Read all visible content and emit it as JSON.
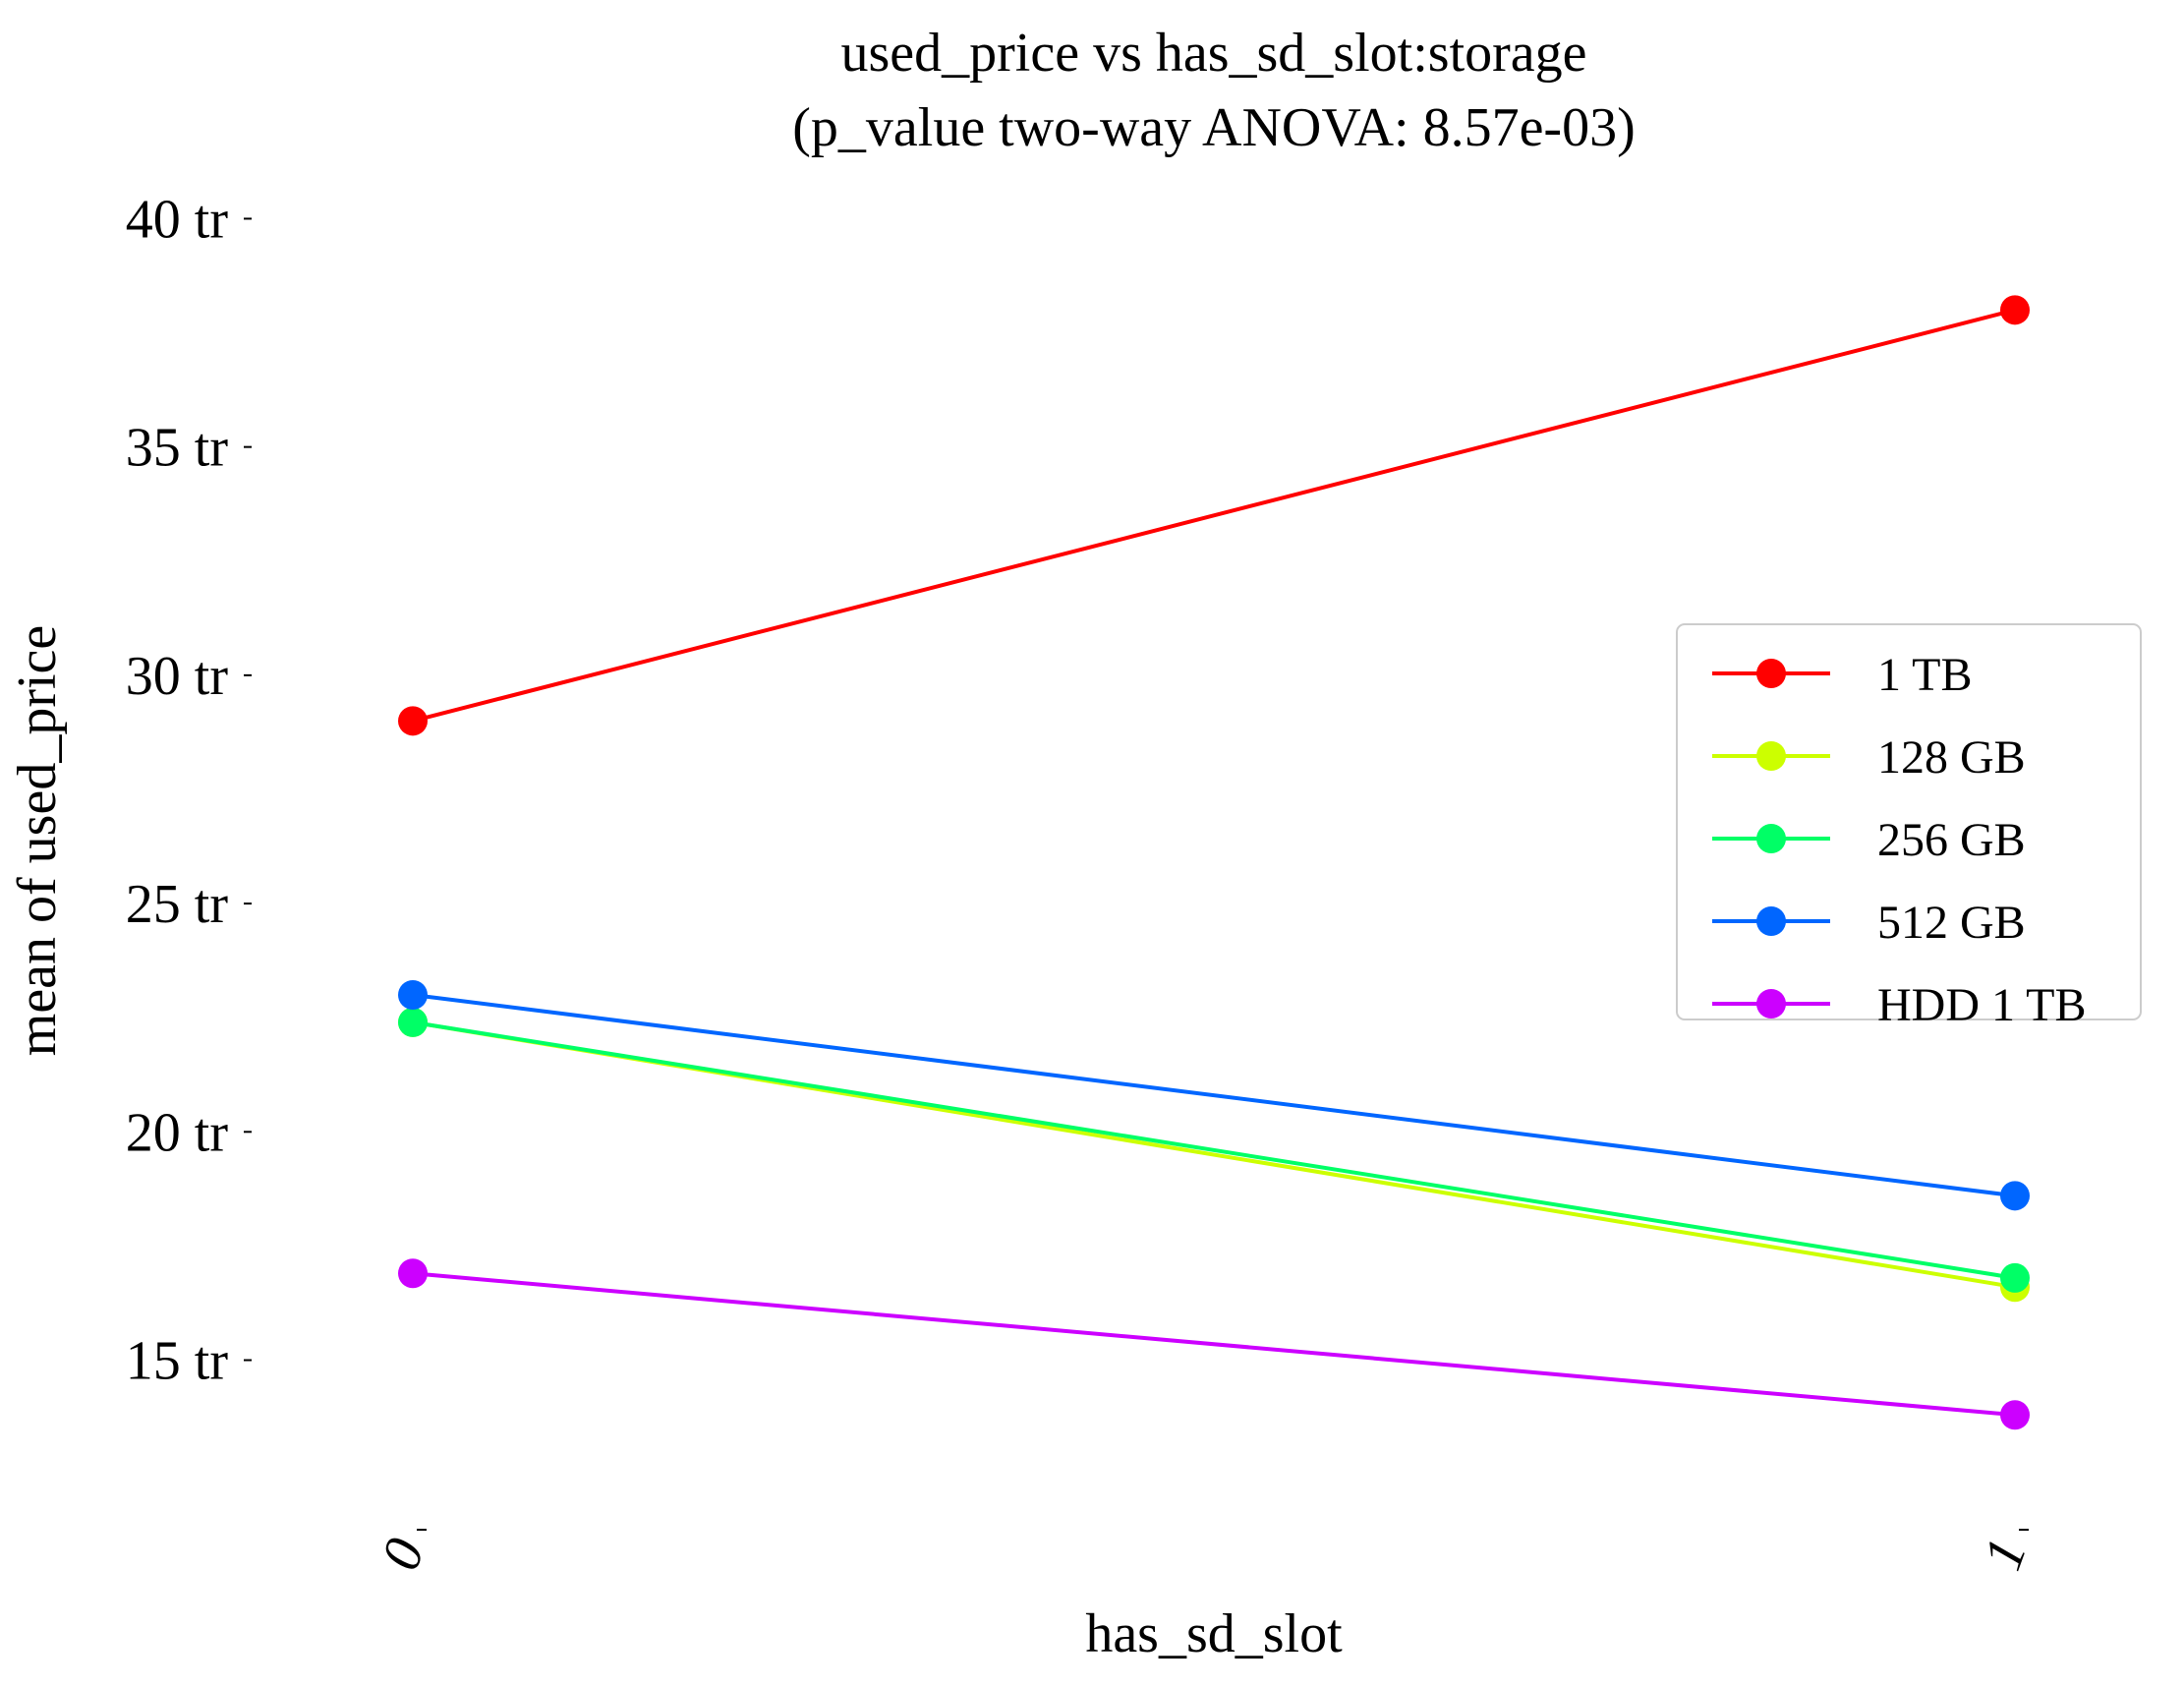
{
  "chart_data": {
    "type": "line",
    "title": "used_price vs has_sd_slot:storage",
    "subtitle": "(p_value two-way ANOVA: 8.57e-03)",
    "xlabel": "has_sd_slot",
    "ylabel": "mean of used_price",
    "categories": [
      "0",
      "1"
    ],
    "y_ticks": [
      15,
      20,
      25,
      30,
      35,
      40
    ],
    "y_tick_labels": [
      "15 tr",
      "20 tr",
      "25 tr",
      "30 tr",
      "35 tr",
      "40 tr"
    ],
    "ylim": [
      11.2,
      41.0
    ],
    "grid": false,
    "legend_position": "right",
    "series": [
      {
        "name": "1 TB",
        "color": "#ff0000",
        "values": [
          29.0,
          38.0
        ]
      },
      {
        "name": "128 GB",
        "color": "#ccff00",
        "values": [
          22.4,
          16.6
        ]
      },
      {
        "name": "256 GB",
        "color": "#00ff66",
        "values": [
          22.4,
          16.8
        ]
      },
      {
        "name": "512 GB",
        "color": "#0066ff",
        "values": [
          23.0,
          18.6
        ]
      },
      {
        "name": "HDD 1 TB",
        "color": "#cc00ff",
        "values": [
          16.9,
          13.8
        ]
      }
    ]
  }
}
